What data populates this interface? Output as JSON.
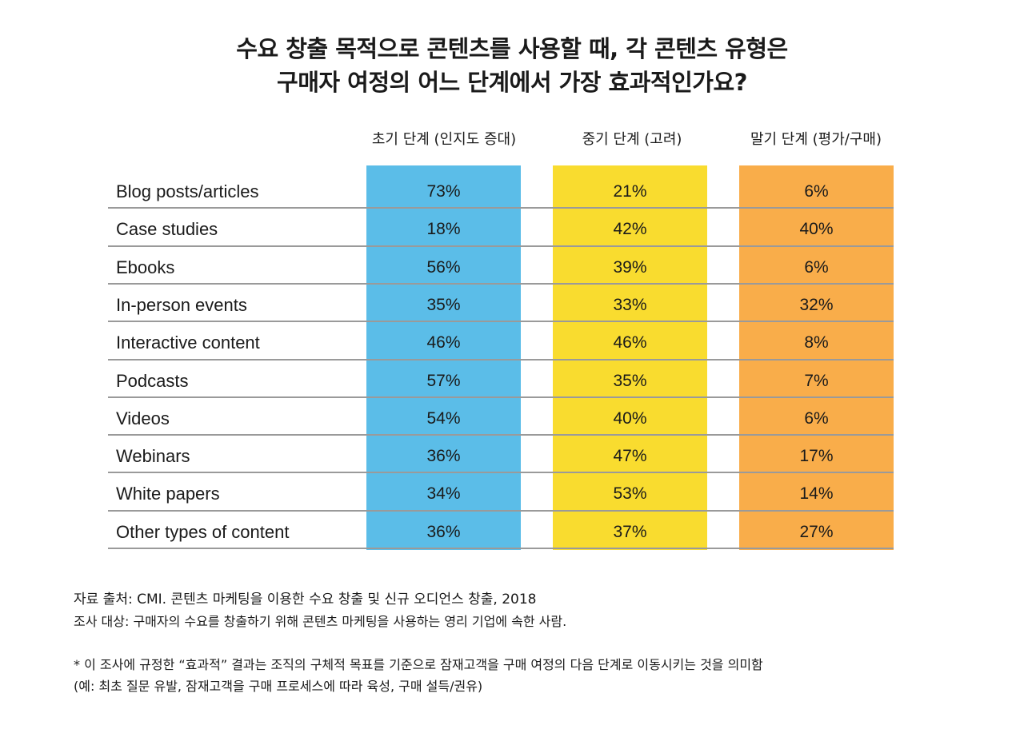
{
  "title": {
    "line1": "수요 창출 목적으로 콘텐츠를 사용할 때, 각 콘텐츠 유형은",
    "line2": "구매자 여정의 어느 단계에서 가장 효과적인가요?"
  },
  "colors": {
    "early": "#5bbde8",
    "mid": "#f9dc2f",
    "late": "#f9ad4a"
  },
  "chart_data": {
    "type": "table",
    "columns": [
      "초기 단계 (인지도 증대)",
      "중기 단계 (고려)",
      "말기 단계 (평가/구매)"
    ],
    "rows": [
      {
        "label": "Blog posts/articles",
        "values": [
          "73%",
          "21%",
          "6%"
        ]
      },
      {
        "label": "Case studies",
        "values": [
          "18%",
          "42%",
          "40%"
        ]
      },
      {
        "label": "Ebooks",
        "values": [
          "56%",
          "39%",
          "6%"
        ]
      },
      {
        "label": "In-person events",
        "values": [
          "35%",
          "33%",
          "32%"
        ]
      },
      {
        "label": "Interactive content",
        "values": [
          "46%",
          "46%",
          "8%"
        ]
      },
      {
        "label": "Podcasts",
        "values": [
          "57%",
          "35%",
          "7%"
        ]
      },
      {
        "label": "Videos",
        "values": [
          "54%",
          "40%",
          "6%"
        ]
      },
      {
        "label": "Webinars",
        "values": [
          "36%",
          "47%",
          "17%"
        ]
      },
      {
        "label": "White papers",
        "values": [
          "34%",
          "53%",
          "14%"
        ]
      },
      {
        "label": "Other types of content",
        "values": [
          "36%",
          "37%",
          "27%"
        ]
      }
    ]
  },
  "notes": {
    "source": "자료 출처: CMI. 콘텐츠 마케팅을 이용한 수요 창출 및 신규 오디언스 창출, 2018",
    "survey": "조사 대상: 구매자의 수요를 창출하기 위해 콘텐츠 마케팅을 사용하는 영리 기업에 속한 사람.",
    "footnote1": "* 이 조사에 규정한 “효과적” 결과는 조직의 구체적 목표를 기준으로 잠재고객을 구매 여정의 다음 단계로 이동시키는 것을 의미함",
    "footnote2": "(예: 최초 질문 유발, 잠재고객을 구매 프로세스에 따라 육성, 구매 설득/권유)"
  }
}
